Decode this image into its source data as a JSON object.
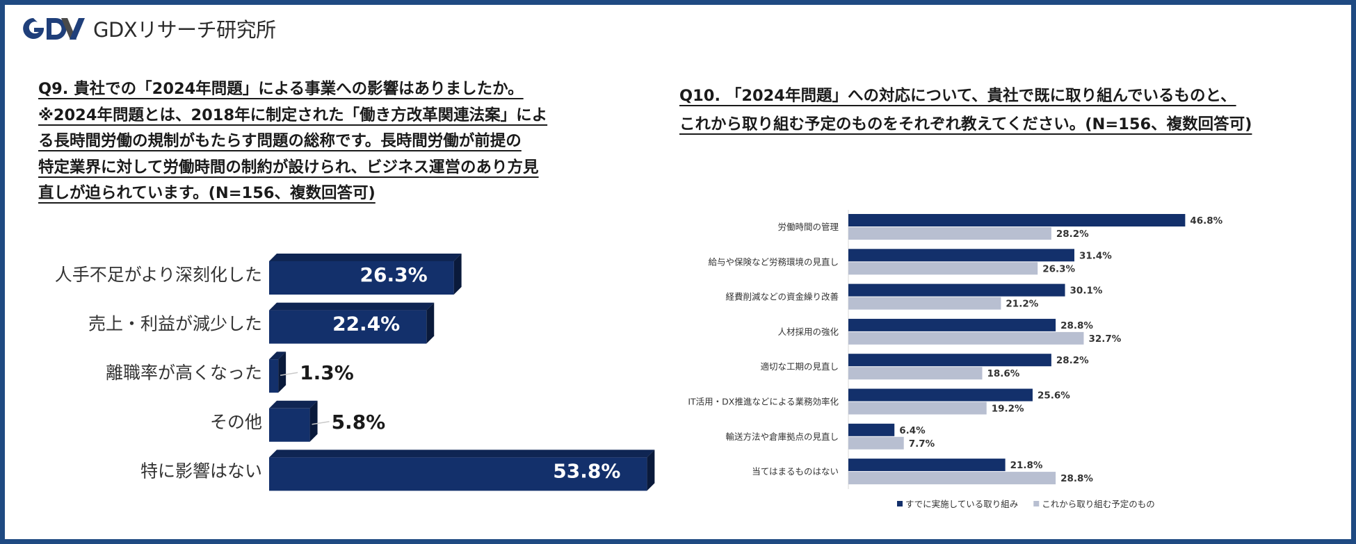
{
  "header": {
    "logo_text": "GDXリサーチ研究所",
    "logo_icon": "gdx-logo-icon"
  },
  "q9": {
    "title_lines": [
      "Q9. 貴社での「2024年問題」による事業への影響はありましたか。",
      "※2024年問題とは、2018年に制定された「働き方改革関連法案」によ",
      "る長時間労働の規制がもたらす問題の総称です。長時間労働が前提の",
      "特定業界に対して労働時間の制約が設けられ、ビジネス運営のあり方見",
      "直しが迫られています。(N=156、複数回答可)"
    ]
  },
  "q10": {
    "title_lines": [
      "Q10. 「2024年問題」への対応について、貴社で既に取り組んでいるものと、",
      "これから取り組む予定のものをそれぞれ教えてください。(N=156、複数回答可)"
    ]
  },
  "chart_data": [
    {
      "type": "bar",
      "orientation": "horizontal",
      "style": "3d",
      "categories": [
        "人手不足がより深刻化した",
        "売上・利益が減少した",
        "離職率が高くなった",
        "その他",
        "特に影響はない"
      ],
      "values": [
        26.3,
        22.4,
        1.3,
        5.8,
        53.8
      ],
      "labels": [
        "26.3%",
        "22.4%",
        "1.3%",
        "5.8%",
        "53.8%"
      ],
      "unit": "%",
      "color": "#13306b",
      "grid": false
    },
    {
      "type": "bar",
      "orientation": "horizontal",
      "categories": [
        "労働時間の管理",
        "給与や保険など労務環境の見直し",
        "経費削減などの資金繰り改善",
        "人材採用の強化",
        "適切な工期の見直し",
        "IT活用・DX推進などによる業務効率化",
        "輸送方法や倉庫拠点の見直し",
        "当てはまるものはない"
      ],
      "series": [
        {
          "name": "すでに実施している取り組み",
          "color": "#13306b",
          "values": [
            46.8,
            31.4,
            30.1,
            28.8,
            28.2,
            25.6,
            6.4,
            21.8
          ],
          "labels": [
            "46.8%",
            "31.4%",
            "30.1%",
            "28.8%",
            "28.2%",
            "25.6%",
            "6.4%",
            "21.8%"
          ]
        },
        {
          "name": "これから取り組む予定のもの",
          "color": "#b8bfd1",
          "values": [
            28.2,
            26.3,
            21.2,
            32.7,
            18.6,
            19.2,
            7.7,
            28.8
          ],
          "labels": [
            "28.2%",
            "26.3%",
            "21.2%",
            "32.7%",
            "18.6%",
            "19.2%",
            "7.7%",
            "28.8%"
          ]
        }
      ],
      "unit": "%",
      "legend": "bottom",
      "grid": false
    }
  ]
}
